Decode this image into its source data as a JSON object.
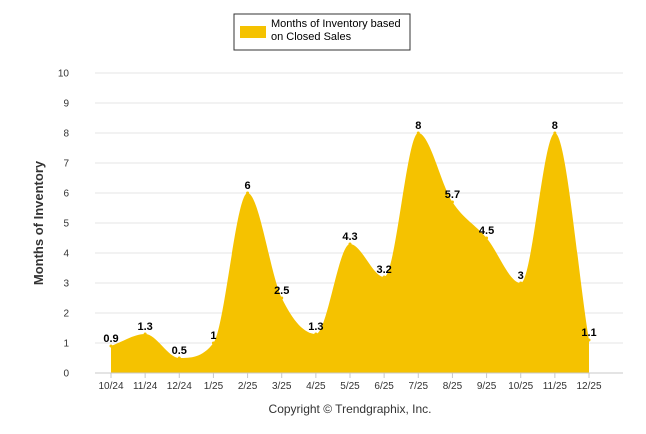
{
  "chart_data": {
    "type": "area",
    "categories": [
      "10/24",
      "11/24",
      "12/24",
      "1/25",
      "2/25",
      "3/25",
      "4/25",
      "5/25",
      "6/25",
      "7/25",
      "8/25",
      "9/25",
      "10/25",
      "11/25",
      "12/25"
    ],
    "series": [
      {
        "name": "Months of Inventory based on Closed Sales",
        "values": [
          0.9,
          1.3,
          0.5,
          1,
          6,
          2.5,
          1.3,
          4.3,
          3.2,
          8,
          5.7,
          4.5,
          3,
          8,
          1.1
        ],
        "color": "#F5C200"
      }
    ],
    "data_labels": [
      "0.9",
      "1.3",
      "0.5",
      "1",
      "6",
      "2.5",
      "1.3",
      "4.3",
      "3.2",
      "8",
      "5.7",
      "4.5",
      "3",
      "8",
      "1.1"
    ],
    "yticks": [
      "0",
      "1",
      "2",
      "3",
      "4",
      "5",
      "6",
      "7",
      "8",
      "9",
      "10"
    ],
    "ylim": [
      0,
      10
    ],
    "ylabel": "Months of Inventory",
    "xlabel": "",
    "grid": true,
    "legend_position": "top-center",
    "credit": "Copyright © Trendgraphix, Inc."
  }
}
